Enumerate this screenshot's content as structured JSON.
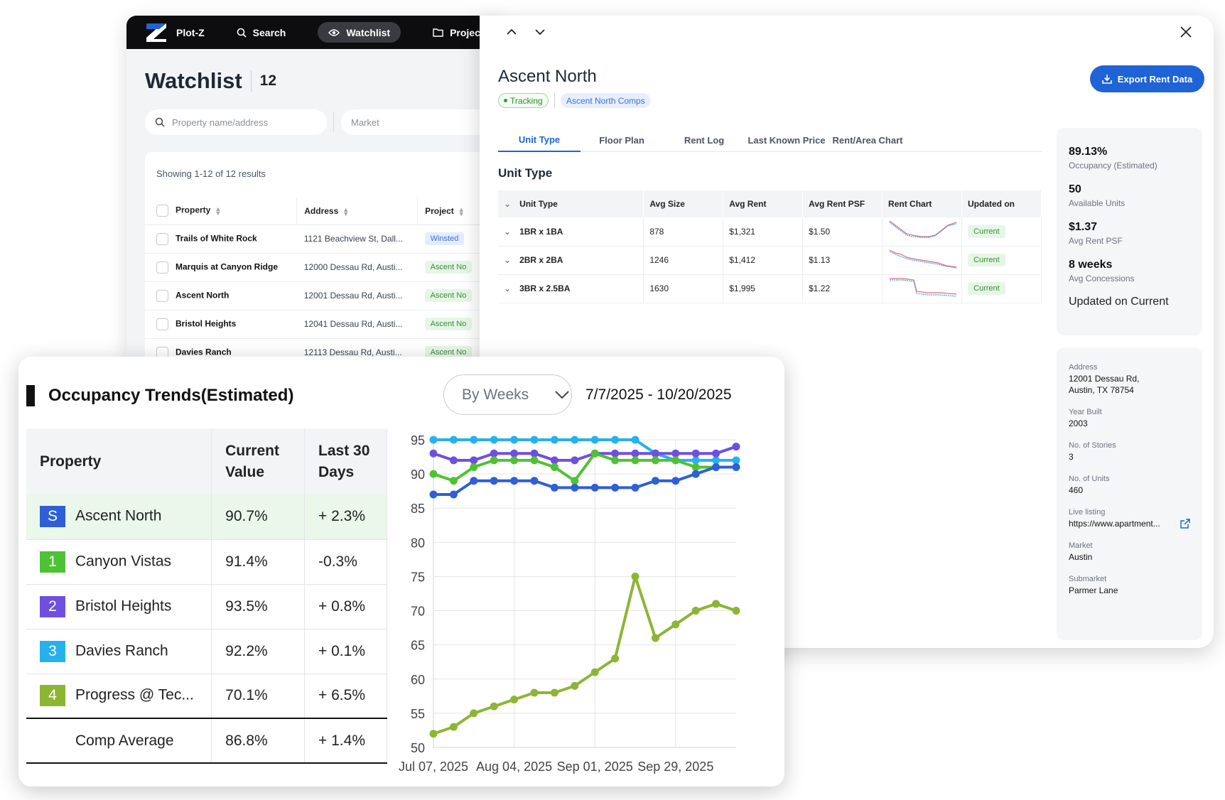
{
  "nav": {
    "brand": "Plot-Z",
    "items": [
      {
        "label": "Search",
        "icon": "search-icon"
      },
      {
        "label": "Watchlist",
        "icon": "eye-icon"
      },
      {
        "label": "Project",
        "icon": "folder-icon"
      }
    ]
  },
  "watchlist": {
    "title": "Watchlist",
    "count": "12",
    "search_placeholder": "Property name/address",
    "market_placeholder": "Market",
    "showing": "Showing 1-12 of 12 results",
    "columns": [
      "Property",
      "Address",
      "Project"
    ],
    "rows": [
      {
        "property": "Trails of White Rock",
        "address": "1121 Beachview St, Dall...",
        "project": "Winsted"
      },
      {
        "property": "Marquis at Canyon Ridge",
        "address": "12000 Dessau Rd, Austi...",
        "project": "Ascent No"
      },
      {
        "property": "Ascent North",
        "address": "12001 Dessau Rd, Austi...",
        "project": "Ascent No"
      },
      {
        "property": "Bristol Heights",
        "address": "12041 Dessau Rd, Austi...",
        "project": "Ascent No"
      },
      {
        "property": "Davies Ranch",
        "address": "12113 Dessau Rd, Austi...",
        "project": "Ascent No"
      }
    ]
  },
  "detail": {
    "title": "Ascent North",
    "status": "Tracking",
    "comp_tag": "Ascent North Comps",
    "export_label": "Export Rent Data",
    "tabs": [
      "Unit Type",
      "Floor Plan",
      "Rent Log",
      "Last Known Price",
      "Rent/Area Chart"
    ],
    "section_title": "Unit Type",
    "unit_columns": [
      "Unit Type",
      "Avg Size",
      "Avg Rent",
      "Avg Rent PSF",
      "Rent Chart",
      "Updated on"
    ],
    "units": [
      {
        "type": "1BR x 1BA",
        "size": "878",
        "rent": "$1,321",
        "psf": "$1.50",
        "updated": "Current"
      },
      {
        "type": "2BR x 2BA",
        "size": "1246",
        "rent": "$1,412",
        "psf": "$1.13",
        "updated": "Current"
      },
      {
        "type": "3BR x 2.5BA",
        "size": "1630",
        "rent": "$1,995",
        "psf": "$1.22",
        "updated": "Current"
      }
    ],
    "stats": [
      {
        "value": "89.13%",
        "label": "Occupancy (Estimated)"
      },
      {
        "value": "50",
        "label": "Available Units"
      },
      {
        "value": "$1.37",
        "label": "Avg Rent PSF"
      },
      {
        "value": "8 weeks",
        "label": "Avg Concessions"
      }
    ],
    "stats_note": "Updated on Current",
    "info": [
      {
        "key": "Address",
        "value": "12001 Dessau Rd,\nAustin, TX 78754"
      },
      {
        "key": "Year Built",
        "value": "2003"
      },
      {
        "key": "No. of Stories",
        "value": "3"
      },
      {
        "key": "No. of Units",
        "value": "460"
      },
      {
        "key": "Live listing",
        "value": "https://www.apartment..."
      },
      {
        "key": "Market",
        "value": "Austin"
      },
      {
        "key": "Submarket",
        "value": "Parmer Lane"
      }
    ]
  },
  "occupancy": {
    "title": "Occupancy Trends(Estimated)",
    "period_select": "By Weeks",
    "date_range": "7/7/2025 - 10/20/2025",
    "columns": [
      "Property",
      "Current Value",
      "Last 30 Days"
    ],
    "rows": [
      {
        "badge": "S",
        "name": "Ascent North",
        "current": "90.7%",
        "change": "+ 2.3%",
        "color": "#2f5fd6"
      },
      {
        "badge": "1",
        "name": "Canyon Vistas",
        "current": "91.4%",
        "change": "-0.3%",
        "color": "#4ec234"
      },
      {
        "badge": "2",
        "name": "Bristol Heights",
        "current": "93.5%",
        "change": "+ 0.8%",
        "color": "#6e4fe0"
      },
      {
        "badge": "3",
        "name": "Davies Ranch",
        "current": "92.2%",
        "change": "+ 0.1%",
        "color": "#27b1ec"
      },
      {
        "badge": "4",
        "name": "Progress @ Tec...",
        "current": "70.1%",
        "change": "+ 6.5%",
        "color": "#8db534"
      }
    ],
    "average": {
      "name": "Comp Average",
      "current": "86.8%",
      "change": "+ 1.4%"
    }
  },
  "chart_data": {
    "type": "line",
    "title": "Occupancy Trends(Estimated)",
    "xlabel": "",
    "ylabel": "",
    "ylim": [
      50,
      95
    ],
    "yticks": [
      95,
      90,
      85,
      80,
      75,
      70,
      65,
      60,
      55,
      50
    ],
    "xtick_labels": [
      "Jul 07, 2025",
      "Aug 04, 2025",
      "Sep 01, 2025",
      "Sep 29, 2025"
    ],
    "xtick_index": [
      0,
      4,
      8,
      12
    ],
    "x_count": 16,
    "series": [
      {
        "name": "Davies Ranch",
        "color": "#27b1ec",
        "values": [
          95,
          95,
          95,
          95,
          95,
          95,
          95,
          95,
          95,
          95,
          95,
          93,
          92,
          92,
          92,
          92
        ]
      },
      {
        "name": "Bristol Heights",
        "color": "#6e4fe0",
        "values": [
          93,
          92,
          92,
          93,
          93,
          93,
          92,
          92,
          93,
          93,
          93,
          93,
          93,
          93,
          93,
          94
        ]
      },
      {
        "name": "Canyon Vistas",
        "color": "#4ec234",
        "values": [
          90,
          89,
          91,
          92,
          92,
          92,
          91,
          89,
          93,
          92,
          92,
          92,
          92,
          91,
          91,
          91
        ]
      },
      {
        "name": "Ascent North",
        "color": "#2f5fd6",
        "values": [
          87,
          87,
          89,
          89,
          89,
          89,
          88,
          88,
          88,
          88,
          88,
          89,
          89,
          90,
          91,
          91
        ]
      },
      {
        "name": "Progress @ Tec...",
        "color": "#8db534",
        "values": [
          52,
          53,
          55,
          56,
          57,
          58,
          58,
          59,
          61,
          63,
          75,
          66,
          68,
          70,
          71,
          70
        ]
      }
    ]
  }
}
